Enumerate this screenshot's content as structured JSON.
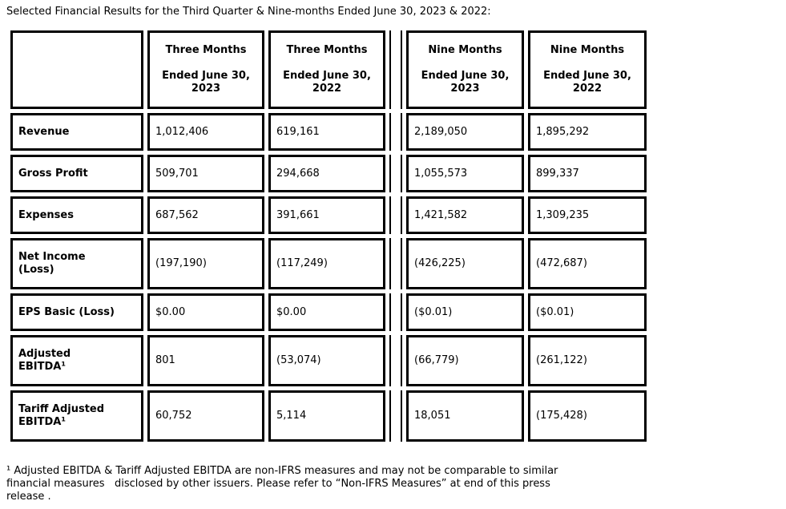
{
  "title": "Selected Financial Results for the Third Quarter & Nine-months Ended June 30, 2023 & 2022:",
  "colors": {
    "text": "#000000",
    "table_border": "#000000",
    "background": "#ffffff"
  },
  "table": {
    "corner_label": "",
    "col_headers": [
      [
        "Three Months",
        "",
        "Ended June 30,",
        "2023"
      ],
      [
        "Three Months",
        "",
        "Ended June 30,",
        "2022"
      ],
      [
        "Nine Months",
        "",
        "Ended June 30,",
        "2023"
      ],
      [
        "Nine Months",
        "",
        "Ended June 30,",
        "2022"
      ]
    ],
    "rows": [
      {
        "label": "Revenue",
        "values": [
          "1,012,406",
          "619,161",
          "2,189,050",
          "1,895,292"
        ]
      },
      {
        "label": "Gross Profit",
        "values": [
          "509,701",
          "294,668",
          "1,055,573",
          "899,337"
        ]
      },
      {
        "label": "Expenses",
        "values": [
          "687,562",
          "391,661",
          "1,421,582",
          "1,309,235"
        ]
      },
      {
        "label": [
          "Net Income",
          "(Loss)"
        ],
        "values": [
          "(197,190)",
          "(117,249)",
          "(426,225)",
          "(472,687)"
        ]
      },
      {
        "label": "EPS Basic (Loss)",
        "values": [
          "$0.00",
          "$0.00",
          "($0.01)",
          "($0.01)"
        ]
      },
      {
        "label": [
          "Adjusted",
          "EBITDA¹"
        ],
        "values": [
          "801",
          "(53,074)",
          "(66,779)",
          "(261,122)"
        ]
      },
      {
        "label": [
          "Tariff Adjusted",
          "EBITDA¹"
        ],
        "values": [
          "60,752",
          "5,114",
          "18,051",
          "(175,428)"
        ]
      }
    ]
  },
  "footnote_lines": [
    "¹ Adjusted EBITDA & Tariff Adjusted EBITDA are non-IFRS measures and may not be comparable to similar",
    "financial measures   disclosed by other issuers. Please refer to “Non-IFRS Measures” at end of this press",
    "release ."
  ]
}
